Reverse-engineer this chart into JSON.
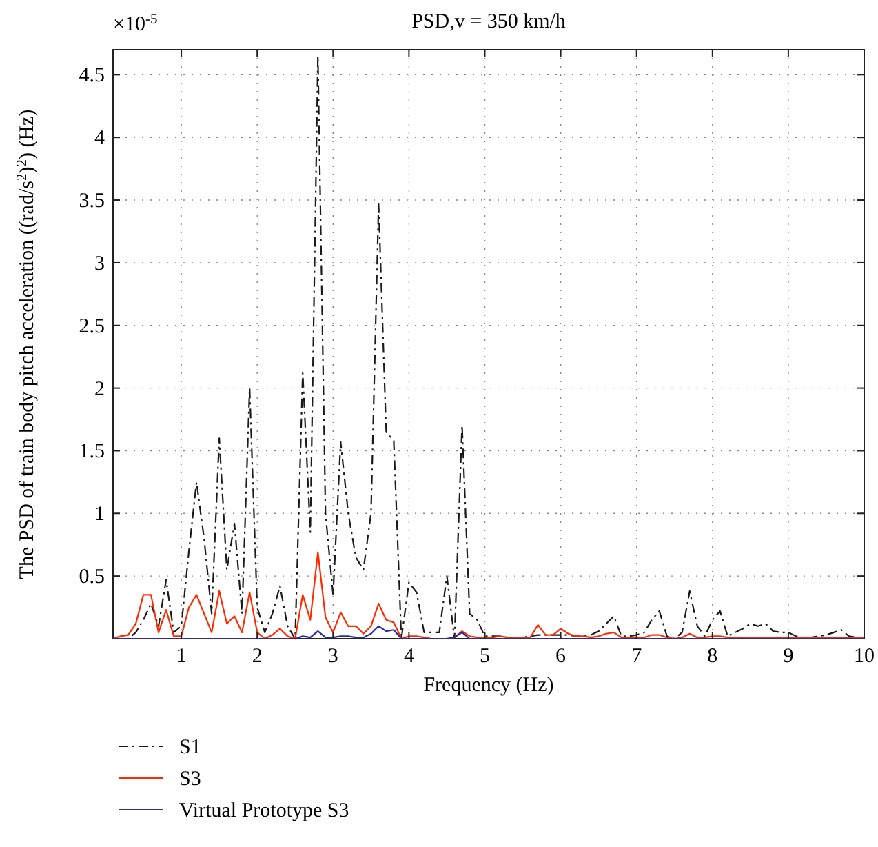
{
  "chart_data": {
    "type": "line",
    "title": "PSD,v = 350 km/h",
    "xlabel": "Frequency (Hz)",
    "ylabel": "The PSD of train body pitch acceleration ((rad/s$^{2}$)$^{2}$) (Hz)",
    "annotations": [
      "×10$^{-5}$"
    ],
    "x": [
      0.1,
      0.2,
      0.3,
      0.4,
      0.5,
      0.6,
      0.7,
      0.8,
      0.9,
      1.0,
      1.1,
      1.2,
      1.3,
      1.4,
      1.5,
      1.6,
      1.7,
      1.8,
      1.9,
      2.0,
      2.1,
      2.2,
      2.3,
      2.4,
      2.5,
      2.6,
      2.7,
      2.8,
      2.9,
      3.0,
      3.1,
      3.2,
      3.3,
      3.4,
      3.5,
      3.6,
      3.7,
      3.8,
      3.9,
      4.0,
      4.1,
      4.2,
      4.3,
      4.4,
      4.5,
      4.6,
      4.7,
      4.8,
      4.9,
      5.0,
      5.1,
      5.2,
      5.3,
      5.4,
      5.5,
      5.6,
      5.7,
      5.8,
      5.9,
      6.0,
      6.1,
      6.2,
      6.3,
      6.4,
      6.5,
      6.6,
      6.7,
      6.8,
      6.9,
      7.0,
      7.1,
      7.2,
      7.3,
      7.4,
      7.5,
      7.6,
      7.7,
      7.8,
      7.9,
      8.0,
      8.1,
      8.2,
      8.3,
      8.4,
      8.5,
      8.6,
      8.7,
      8.8,
      8.9,
      9.0,
      9.1,
      9.2,
      9.3,
      9.4,
      9.5,
      9.6,
      9.7,
      9.8,
      9.9,
      10.0
    ],
    "series": [
      {
        "name": "S1",
        "color": "#1a1a1a",
        "line_style": "dashed",
        "values": [
          0,
          0,
          0,
          0.05,
          0.15,
          0.28,
          0.1,
          0.47,
          0.05,
          0.1,
          0.7,
          1.25,
          0.8,
          0.2,
          1.6,
          0.55,
          0.92,
          0.2,
          2.0,
          0.25,
          0.05,
          0.2,
          0.42,
          0.1,
          0,
          2.12,
          0.85,
          4.65,
          1.0,
          0.35,
          1.57,
          1.0,
          0.65,
          0.55,
          1.0,
          3.47,
          1.65,
          1.58,
          0,
          0.45,
          0.37,
          0.05,
          0.05,
          0.05,
          0.5,
          0,
          1.7,
          0.2,
          0.15,
          0.02,
          0.02,
          0.02,
          0,
          0.01,
          0.01,
          0.02,
          0.03,
          0.03,
          0.03,
          0.03,
          0.03,
          0.02,
          0.02,
          0.03,
          0.06,
          0.12,
          0.18,
          0.02,
          0.02,
          0.03,
          0.05,
          0.15,
          0.22,
          0.02,
          0,
          0.05,
          0.38,
          0.1,
          0.02,
          0.15,
          0.22,
          0.02,
          0.05,
          0.08,
          0.12,
          0.1,
          0.12,
          0.06,
          0.05,
          0.05,
          0.02,
          0.01,
          0.01,
          0.02,
          0.03,
          0.05,
          0.07,
          0.02,
          0.01,
          0.01
        ]
      },
      {
        "name": "S3",
        "color": "#ff2a00",
        "line_style": "solid",
        "values": [
          0,
          0.02,
          0.03,
          0.12,
          0.35,
          0.35,
          0.05,
          0.23,
          0.02,
          0.02,
          0.25,
          0.35,
          0.2,
          0.05,
          0.38,
          0.12,
          0.18,
          0.05,
          0.37,
          0.05,
          0,
          0.03,
          0.08,
          0.02,
          0,
          0.35,
          0.15,
          0.69,
          0.17,
          0.05,
          0.21,
          0.1,
          0.1,
          0.04,
          0.1,
          0.28,
          0.15,
          0.13,
          0,
          0.02,
          0.02,
          0.01,
          0,
          0,
          0,
          0.01,
          0.06,
          0.02,
          0.01,
          0.01,
          0.01,
          0.02,
          0.01,
          0.01,
          0.01,
          0.01,
          0.11,
          0.03,
          0.03,
          0.08,
          0.04,
          0.02,
          0.02,
          0.01,
          0.02,
          0.04,
          0.05,
          0.01,
          0.01,
          0.01,
          0.01,
          0.03,
          0.03,
          0.01,
          0,
          0.01,
          0.04,
          0.01,
          0.01,
          0.02,
          0.02,
          0.01,
          0.01,
          0.01,
          0.01,
          0.01,
          0.01,
          0.01,
          0.01,
          0.01,
          0.01,
          0.01,
          0.01,
          0.01,
          0.01,
          0.01,
          0.01,
          0.01,
          0.01,
          0.01
        ]
      },
      {
        "name": "Virtual Prototype S3",
        "color": "#2b2b9c",
        "line_style": "solid",
        "values": [
          0,
          0,
          0,
          0,
          0,
          0,
          0,
          0,
          0,
          0,
          0,
          0,
          0,
          0,
          0,
          0,
          0,
          0,
          0,
          0,
          0,
          0,
          0,
          0,
          0,
          0.02,
          0.01,
          0.06,
          0.01,
          0.01,
          0.02,
          0.02,
          0.01,
          0.01,
          0.04,
          0.1,
          0.06,
          0.07,
          0,
          0,
          0,
          0,
          0,
          0,
          0,
          0.01,
          0.05,
          0,
          0,
          0,
          0,
          0,
          0,
          0,
          0,
          0,
          0,
          0,
          0,
          0,
          0,
          0,
          0,
          0,
          0,
          0,
          0,
          0,
          0,
          0,
          0,
          0,
          0,
          0,
          0,
          0,
          0,
          0,
          0,
          0,
          0,
          0,
          0,
          0,
          0,
          0,
          0,
          0,
          0,
          0,
          0,
          0,
          0,
          0,
          0,
          0,
          0,
          0,
          0,
          0
        ]
      }
    ],
    "xlim": [
      0.1,
      10
    ],
    "xticks": [
      1,
      2,
      3,
      4,
      5,
      6,
      7,
      8,
      9,
      10
    ],
    "ylim": [
      0,
      4.7
    ],
    "yticks": [
      0.5,
      1,
      1.5,
      2,
      2.5,
      3,
      3.5,
      4,
      4.5
    ],
    "grid": true,
    "legend": "bottom",
    "marker": "none"
  }
}
